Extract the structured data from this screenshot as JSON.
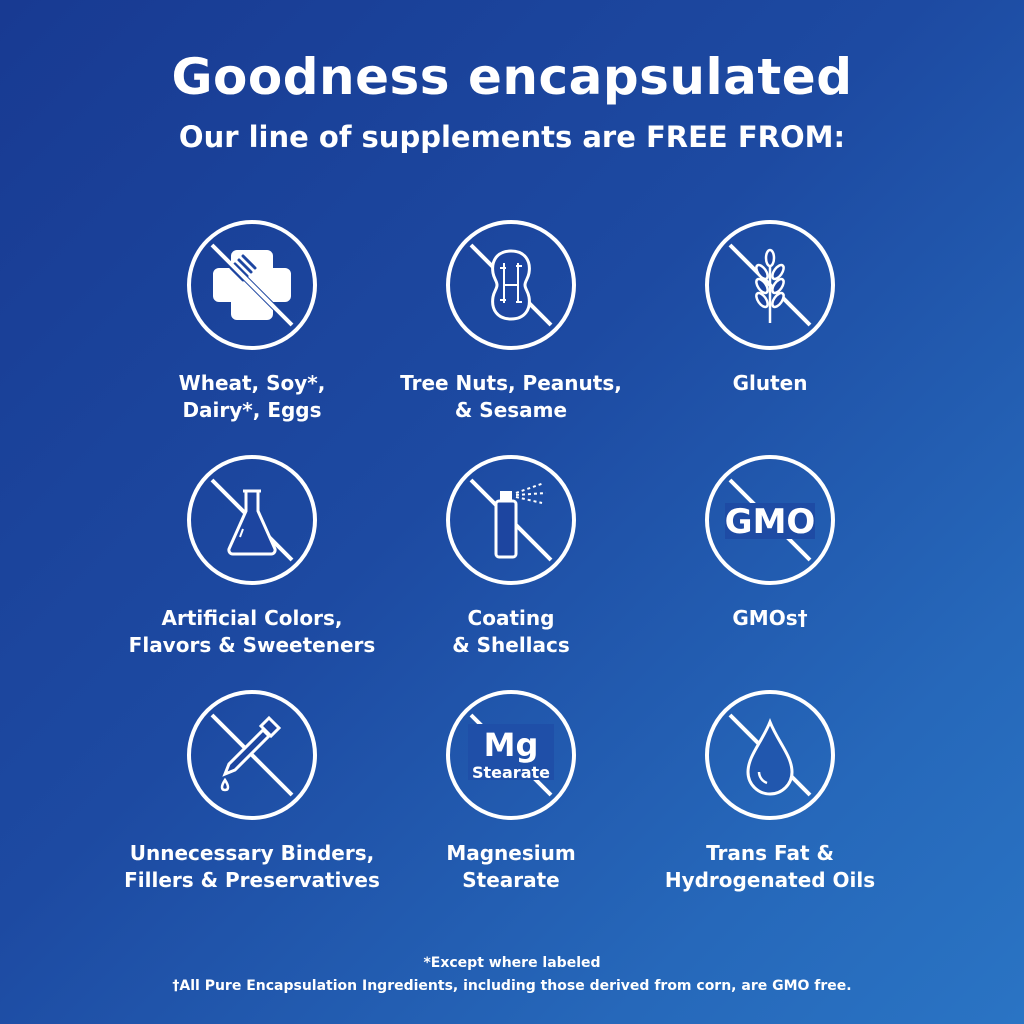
{
  "header": {
    "title": "Goodness encapsulated",
    "subtitle": "Our line of supplements are FREE FROM:"
  },
  "items": [
    {
      "icon": "wheat-soy-dairy-eggs-icon",
      "line1": "Wheat, Soy*,",
      "line2": "Dairy*, Eggs"
    },
    {
      "icon": "peanut-icon",
      "line1": "Tree Nuts, Peanuts,",
      "line2": "& Sesame"
    },
    {
      "icon": "wheat-stalk-icon",
      "line1": "Gluten",
      "line2": ""
    },
    {
      "icon": "flask-icon",
      "line1": "Artificial Colors,",
      "line2": "Flavors & Sweeteners"
    },
    {
      "icon": "spray-can-icon",
      "line1": "Coating",
      "line2": "& Shellacs"
    },
    {
      "icon": "gmo-icon",
      "icon_text": "GMO",
      "line1": "GMOs†",
      "line2": ""
    },
    {
      "icon": "dropper-icon",
      "line1": "Unnecessary Binders,",
      "line2": "Fillers & Preservatives"
    },
    {
      "icon": "mg-stearate-icon",
      "icon_text": "Mg",
      "icon_subtext": "Stearate",
      "line1": "Magnesium",
      "line2": "Stearate"
    },
    {
      "icon": "oil-drop-icon",
      "line1": "Trans Fat &",
      "line2": "Hydrogenated Oils"
    }
  ],
  "footnotes": {
    "star": "*Except where labeled",
    "dagger": "†All Pure Encapsulation Ingredients, including those derived from corn, are GMO free."
  },
  "colors": {
    "background_start": "#183a92",
    "background_end": "#2a74c4",
    "foreground": "#ffffff"
  }
}
